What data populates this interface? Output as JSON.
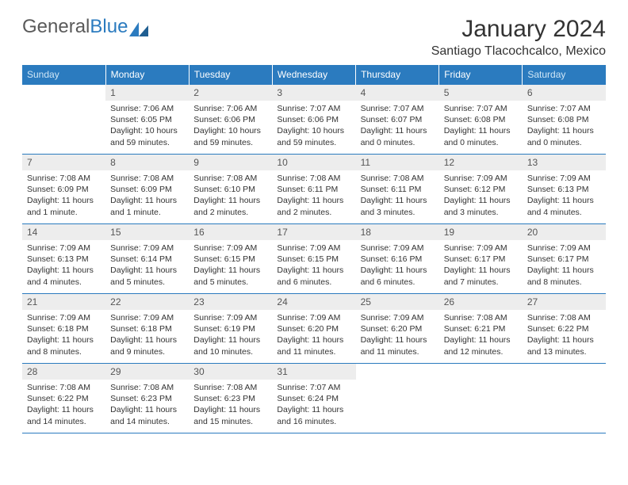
{
  "logo": {
    "part1": "General",
    "part2": "Blue"
  },
  "title": "January 2024",
  "location": "Santiago Tlacochcalco, Mexico",
  "colors": {
    "header_bg": "#2b7bbf",
    "header_text": "#ffffff",
    "weekend_header_text": "#cfe6f6",
    "daynum_bg": "#ededed",
    "border": "#2b7bbf",
    "body_text": "#333333"
  },
  "weekdays": [
    "Sunday",
    "Monday",
    "Tuesday",
    "Wednesday",
    "Thursday",
    "Friday",
    "Saturday"
  ],
  "weeks": [
    [
      {
        "n": "",
        "t": ""
      },
      {
        "n": "1",
        "t": "Sunrise: 7:06 AM\nSunset: 6:05 PM\nDaylight: 10 hours and 59 minutes."
      },
      {
        "n": "2",
        "t": "Sunrise: 7:06 AM\nSunset: 6:06 PM\nDaylight: 10 hours and 59 minutes."
      },
      {
        "n": "3",
        "t": "Sunrise: 7:07 AM\nSunset: 6:06 PM\nDaylight: 10 hours and 59 minutes."
      },
      {
        "n": "4",
        "t": "Sunrise: 7:07 AM\nSunset: 6:07 PM\nDaylight: 11 hours and 0 minutes."
      },
      {
        "n": "5",
        "t": "Sunrise: 7:07 AM\nSunset: 6:08 PM\nDaylight: 11 hours and 0 minutes."
      },
      {
        "n": "6",
        "t": "Sunrise: 7:07 AM\nSunset: 6:08 PM\nDaylight: 11 hours and 0 minutes."
      }
    ],
    [
      {
        "n": "7",
        "t": "Sunrise: 7:08 AM\nSunset: 6:09 PM\nDaylight: 11 hours and 1 minute."
      },
      {
        "n": "8",
        "t": "Sunrise: 7:08 AM\nSunset: 6:09 PM\nDaylight: 11 hours and 1 minute."
      },
      {
        "n": "9",
        "t": "Sunrise: 7:08 AM\nSunset: 6:10 PM\nDaylight: 11 hours and 2 minutes."
      },
      {
        "n": "10",
        "t": "Sunrise: 7:08 AM\nSunset: 6:11 PM\nDaylight: 11 hours and 2 minutes."
      },
      {
        "n": "11",
        "t": "Sunrise: 7:08 AM\nSunset: 6:11 PM\nDaylight: 11 hours and 3 minutes."
      },
      {
        "n": "12",
        "t": "Sunrise: 7:09 AM\nSunset: 6:12 PM\nDaylight: 11 hours and 3 minutes."
      },
      {
        "n": "13",
        "t": "Sunrise: 7:09 AM\nSunset: 6:13 PM\nDaylight: 11 hours and 4 minutes."
      }
    ],
    [
      {
        "n": "14",
        "t": "Sunrise: 7:09 AM\nSunset: 6:13 PM\nDaylight: 11 hours and 4 minutes."
      },
      {
        "n": "15",
        "t": "Sunrise: 7:09 AM\nSunset: 6:14 PM\nDaylight: 11 hours and 5 minutes."
      },
      {
        "n": "16",
        "t": "Sunrise: 7:09 AM\nSunset: 6:15 PM\nDaylight: 11 hours and 5 minutes."
      },
      {
        "n": "17",
        "t": "Sunrise: 7:09 AM\nSunset: 6:15 PM\nDaylight: 11 hours and 6 minutes."
      },
      {
        "n": "18",
        "t": "Sunrise: 7:09 AM\nSunset: 6:16 PM\nDaylight: 11 hours and 6 minutes."
      },
      {
        "n": "19",
        "t": "Sunrise: 7:09 AM\nSunset: 6:17 PM\nDaylight: 11 hours and 7 minutes."
      },
      {
        "n": "20",
        "t": "Sunrise: 7:09 AM\nSunset: 6:17 PM\nDaylight: 11 hours and 8 minutes."
      }
    ],
    [
      {
        "n": "21",
        "t": "Sunrise: 7:09 AM\nSunset: 6:18 PM\nDaylight: 11 hours and 8 minutes."
      },
      {
        "n": "22",
        "t": "Sunrise: 7:09 AM\nSunset: 6:18 PM\nDaylight: 11 hours and 9 minutes."
      },
      {
        "n": "23",
        "t": "Sunrise: 7:09 AM\nSunset: 6:19 PM\nDaylight: 11 hours and 10 minutes."
      },
      {
        "n": "24",
        "t": "Sunrise: 7:09 AM\nSunset: 6:20 PM\nDaylight: 11 hours and 11 minutes."
      },
      {
        "n": "25",
        "t": "Sunrise: 7:09 AM\nSunset: 6:20 PM\nDaylight: 11 hours and 11 minutes."
      },
      {
        "n": "26",
        "t": "Sunrise: 7:08 AM\nSunset: 6:21 PM\nDaylight: 11 hours and 12 minutes."
      },
      {
        "n": "27",
        "t": "Sunrise: 7:08 AM\nSunset: 6:22 PM\nDaylight: 11 hours and 13 minutes."
      }
    ],
    [
      {
        "n": "28",
        "t": "Sunrise: 7:08 AM\nSunset: 6:22 PM\nDaylight: 11 hours and 14 minutes."
      },
      {
        "n": "29",
        "t": "Sunrise: 7:08 AM\nSunset: 6:23 PM\nDaylight: 11 hours and 14 minutes."
      },
      {
        "n": "30",
        "t": "Sunrise: 7:08 AM\nSunset: 6:23 PM\nDaylight: 11 hours and 15 minutes."
      },
      {
        "n": "31",
        "t": "Sunrise: 7:07 AM\nSunset: 6:24 PM\nDaylight: 11 hours and 16 minutes."
      },
      {
        "n": "",
        "t": ""
      },
      {
        "n": "",
        "t": ""
      },
      {
        "n": "",
        "t": ""
      }
    ]
  ]
}
